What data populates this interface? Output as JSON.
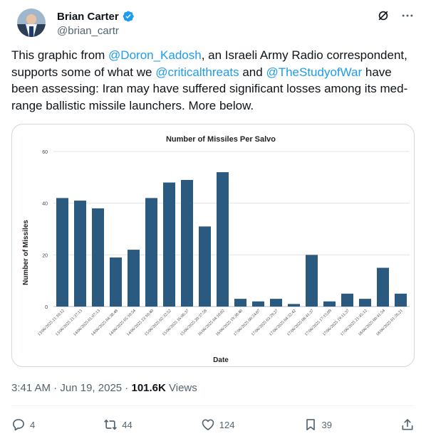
{
  "author": {
    "name": "Brian Carter",
    "handle": "@brian_cartr"
  },
  "tweet": {
    "t1": "This graphic from ",
    "m1": "@Doron_Kadosh",
    "t2": ", an Israeli Army Radio correspondent, supports some of what we ",
    "m2": "@criticalthreats",
    "t3": " and ",
    "m3": "@TheStudyofWar",
    "t4": " have been assessing: Iran may have suffered significant losses among its med-range ballistic missile launchers. More below."
  },
  "meta": {
    "time": "3:41 AM",
    "sep": " · ",
    "date": "Jun 19, 2025",
    "dot": " · ",
    "views_count": "101.6K",
    "views_label": " Views"
  },
  "actions": {
    "replies": "4",
    "reposts": "44",
    "likes": "124",
    "bookmarks": "39"
  },
  "colors": {
    "accent": "#1d9bf0",
    "bar": "#2a5a80",
    "muted": "#536471"
  },
  "icons": [
    "verified-icon",
    "grok-icon",
    "more-icon",
    "reply-icon",
    "repost-icon",
    "like-icon",
    "bookmark-icon",
    "share-icon"
  ],
  "chart_data": {
    "type": "bar",
    "title": "Number of Missiles Per Salvo",
    "xlabel": "Date",
    "ylabel": "Number of Missiles",
    "ylim": [
      0,
      60
    ],
    "yticks": [
      0,
      20,
      40,
      60
    ],
    "grid": true,
    "categories": [
      "13/06/2025 21:10:12",
      "13/06/2025 21:37:13",
      "14/06/2025 01:07:13",
      "14/06/2025 04:38:48",
      "14/06/2025 05:10:54",
      "14/06/2025 23:10:40",
      "15/06/2025 02:32:52",
      "15/06/2025 16:06:37",
      "15/06/2025 20:37:58",
      "16/06/2025 04:10:02",
      "16/06/2025 19:38:40",
      "17/06/2025 00:24:07",
      "17/06/2025 03:29:27",
      "17/06/2025 04:32:42",
      "17/06/2025 08:41:37",
      "17/06/2025 17:15:09",
      "17/06/2025 19:11:37",
      "17/06/2025 21:45:12",
      "18/06/2025 00:41:54",
      "18/06/2025 01:26:21"
    ],
    "values": [
      42,
      41,
      38,
      19,
      22,
      42,
      48,
      49,
      31,
      52,
      3,
      2,
      3,
      1,
      20,
      2,
      5,
      3,
      15,
      5
    ]
  }
}
